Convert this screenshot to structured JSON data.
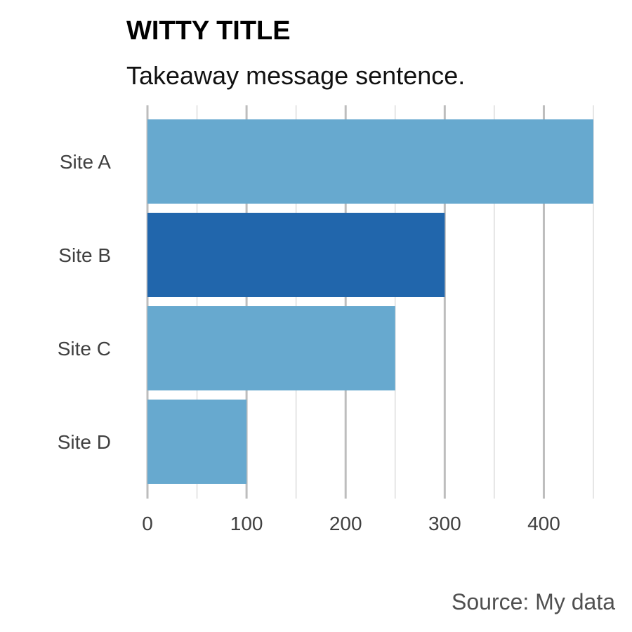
{
  "chart_data": {
    "type": "bar",
    "orientation": "horizontal",
    "title": "WITTY TITLE",
    "subtitle": "Takeaway message sentence.",
    "source": "Source: My data",
    "categories": [
      "Site A",
      "Site B",
      "Site C",
      "Site D"
    ],
    "values": [
      450,
      300,
      250,
      100
    ],
    "highlight_index": 1,
    "xlim": [
      0,
      450
    ],
    "xticks": [
      0,
      100,
      200,
      300,
      400
    ],
    "minor_xticks": [
      50,
      150,
      250,
      350,
      450
    ],
    "grid": true,
    "colors": {
      "bar": "#67a9cf",
      "highlight": "#2166ac",
      "major_grid": "#bdbdbd",
      "minor_grid": "#e6e6e6"
    }
  }
}
